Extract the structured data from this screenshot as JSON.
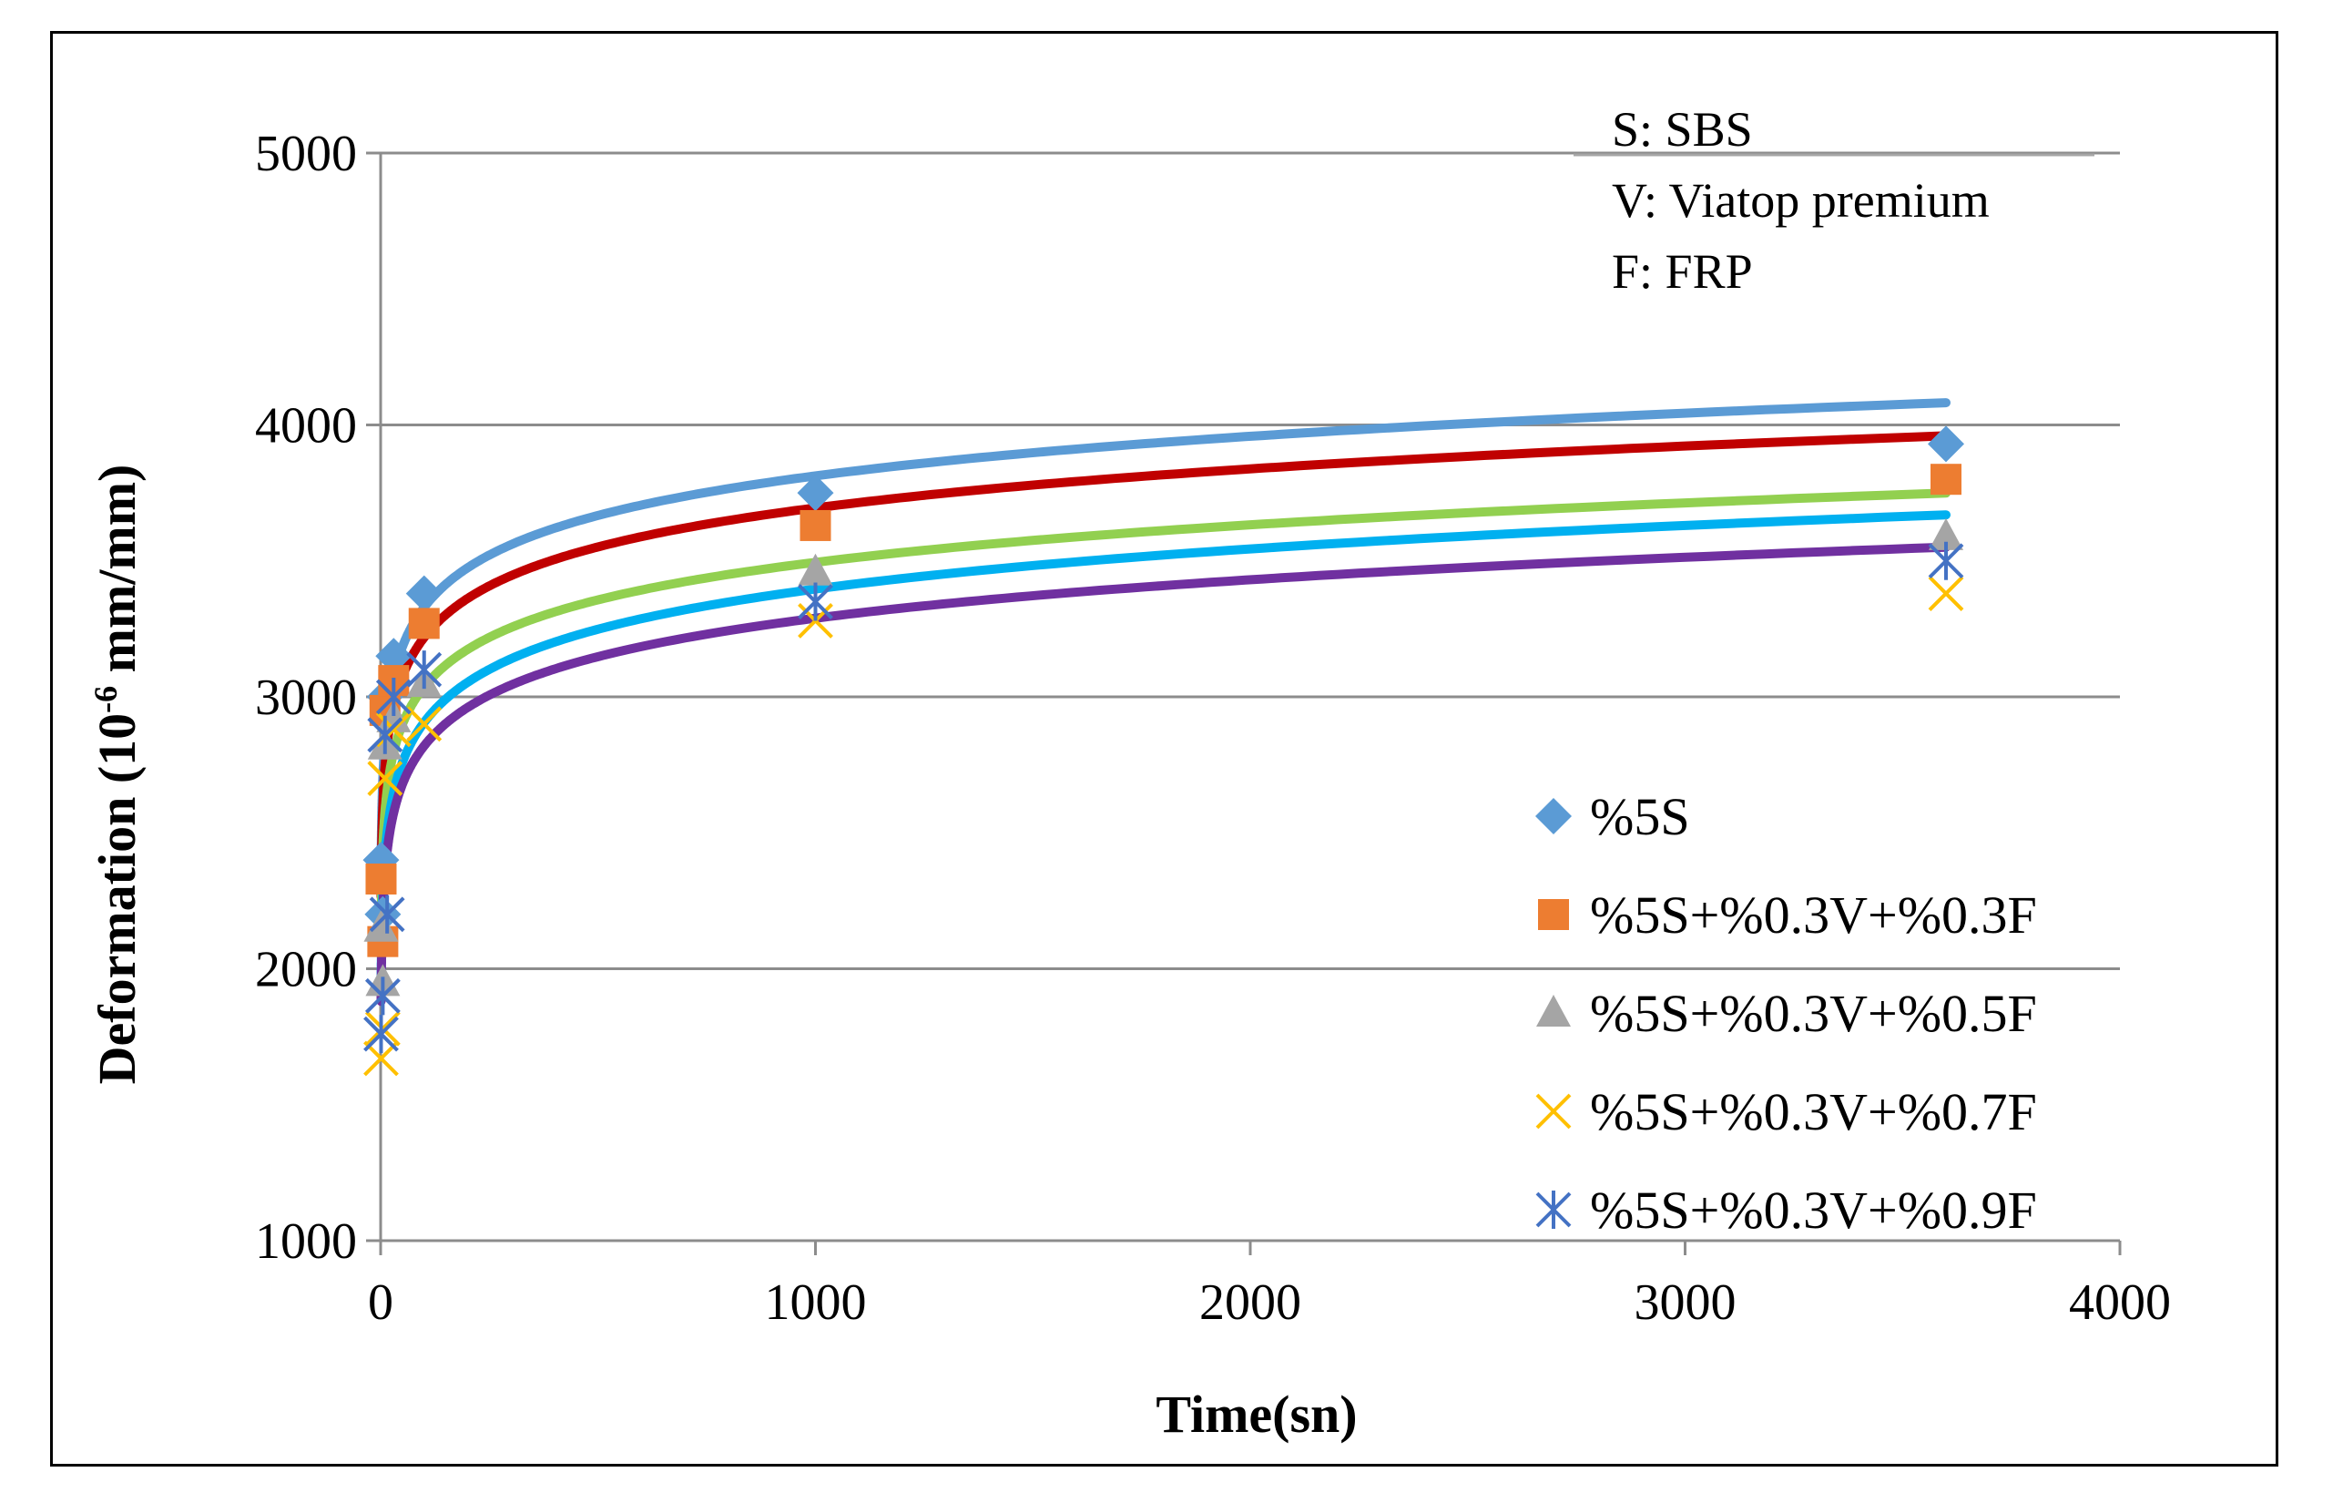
{
  "chart_data": {
    "type": "scatter",
    "xlabel": "Time(sn)",
    "ylabel_main": "Deformation (10",
    "ylabel_sup": "-6",
    "ylabel_tail": " mm/mm)",
    "xlim": [
      0,
      4000
    ],
    "ylim": [
      1000,
      5000
    ],
    "x_ticks": [
      0,
      1000,
      2000,
      3000,
      4000
    ],
    "y_ticks": [
      1000,
      2000,
      3000,
      4000,
      5000
    ],
    "grid": "horizontal",
    "legend_position": "bottom-right",
    "notes": [
      "S: SBS",
      "V: Viatop premium",
      "F: FRP"
    ],
    "series": [
      {
        "name": "%5S",
        "marker": "diamond",
        "color": "#5b9bd5",
        "trend_color": "#5b9bd5",
        "points": [
          [
            1,
            2400
          ],
          [
            5,
            2200
          ],
          [
            10,
            3000
          ],
          [
            30,
            3150
          ],
          [
            100,
            3380
          ],
          [
            1000,
            3750
          ],
          [
            3600,
            3930
          ]
        ],
        "trend": {
          "a": 2362,
          "b": 210
        }
      },
      {
        "name": "%5S+%0.3V+%0.3F",
        "marker": "square",
        "color": "#ed7d31",
        "trend_color": "#c00000",
        "points": [
          [
            1,
            2330
          ],
          [
            5,
            2100
          ],
          [
            10,
            2950
          ],
          [
            30,
            3060
          ],
          [
            100,
            3270
          ],
          [
            1000,
            3630
          ],
          [
            3600,
            3800
          ]
        ],
        "trend": {
          "a": 2265,
          "b": 207
        }
      },
      {
        "name": "%5S+%0.3V+%0.5F",
        "marker": "triangle",
        "color": "#a5a5a5",
        "trend_color": "#92d050",
        "points": [
          [
            1,
            2150
          ],
          [
            5,
            1950
          ],
          [
            10,
            2820
          ],
          [
            30,
            2920
          ],
          [
            100,
            3050
          ],
          [
            1000,
            3460
          ],
          [
            3600,
            3590
          ]
        ],
        "trend": {
          "a": 2120,
          "b": 199
        }
      },
      {
        "name": "%5S+%0.3V+%0.7F",
        "marker": "x",
        "color": "#ffc000",
        "trend_color": "#00b0f0",
        "points": [
          [
            1,
            1670
          ],
          [
            5,
            1780
          ],
          [
            10,
            2700
          ],
          [
            30,
            2880
          ],
          [
            100,
            2900
          ],
          [
            1000,
            3280
          ],
          [
            3600,
            3380
          ]
        ],
        "trend": {
          "a": 1925,
          "b": 213
        }
      },
      {
        "name": "%5S+%0.3V+%0.9F",
        "marker": "star",
        "color": "#4472c4",
        "trend_color": "#7030a0",
        "points": [
          [
            1,
            1760
          ],
          [
            5,
            1900
          ],
          [
            10,
            2860
          ],
          [
            15,
            2200
          ],
          [
            30,
            3000
          ],
          [
            100,
            3100
          ],
          [
            1000,
            3350
          ],
          [
            3600,
            3500
          ]
        ],
        "trend": {
          "a": 1880,
          "b": 204
        }
      }
    ]
  }
}
